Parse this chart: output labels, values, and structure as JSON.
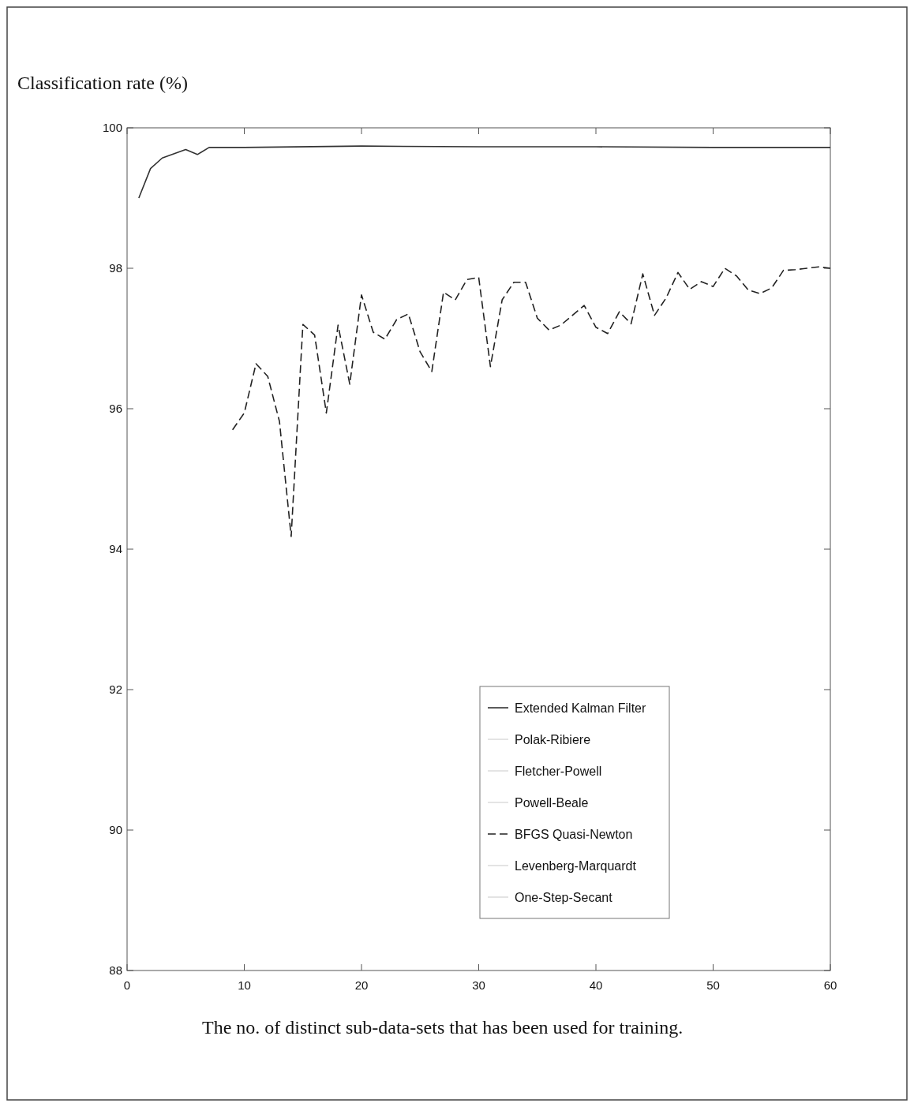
{
  "chart_data": {
    "type": "line",
    "title": "Classification rate (%)",
    "xlabel": "The no. of distinct sub-data-sets that has been used for training.",
    "xlim": [
      0,
      60
    ],
    "ylim": [
      88,
      100
    ],
    "xticks": [
      0,
      10,
      20,
      30,
      40,
      50,
      60
    ],
    "yticks": [
      88,
      90,
      92,
      94,
      96,
      98,
      100
    ],
    "grid": false,
    "legend": "right",
    "line_style": "solid",
    "marker": "none",
    "series": [
      {
        "name": "Extended Kalman Filter",
        "color": "#333333",
        "x": [
          1,
          2,
          3,
          5,
          6,
          7,
          10,
          20,
          30,
          40,
          50,
          60
        ],
        "values": [
          99.0,
          99.42,
          99.57,
          99.69,
          99.62,
          99.72,
          99.72,
          99.74,
          99.73,
          99.73,
          99.72,
          99.72
        ]
      },
      {
        "name": "Polak-Ribiere",
        "color": "#dddddd"
      },
      {
        "name": "Fletcher-Powell",
        "color": "#dddddd"
      },
      {
        "name": "Powell-Beale",
        "color": "#dddddd"
      },
      {
        "name": "BFGS Quasi-Newton",
        "color": "#222222",
        "line_style": "dashed",
        "x": [
          9,
          10,
          11,
          12,
          13,
          14,
          15,
          16,
          17,
          18,
          19,
          20,
          21,
          22,
          23,
          24,
          25,
          26,
          27,
          28,
          29,
          30,
          31,
          32,
          33,
          34,
          35,
          36,
          37,
          39,
          40,
          41,
          42,
          43,
          44,
          45,
          46,
          47,
          48,
          49,
          50,
          51,
          52,
          53,
          54,
          55,
          56,
          57,
          58,
          59,
          60
        ],
        "values": [
          95.7,
          95.94,
          96.64,
          96.46,
          95.82,
          94.18,
          97.2,
          97.05,
          95.94,
          97.19,
          96.35,
          97.62,
          97.09,
          96.99,
          97.27,
          97.35,
          96.81,
          96.53,
          97.66,
          97.55,
          97.84,
          97.87,
          96.6,
          97.55,
          97.8,
          97.8,
          97.29,
          97.12,
          97.19,
          97.47,
          97.16,
          97.07,
          97.38,
          97.21,
          97.92,
          97.33,
          97.58,
          97.94,
          97.7,
          97.81,
          97.74,
          98.0,
          97.89,
          97.69,
          97.64,
          97.72,
          97.97,
          97.98,
          98.0,
          98.02,
          98.0
        ]
      },
      {
        "name": "Levenberg-Marquardt",
        "color": "#dddddd"
      },
      {
        "name": "One-Step-Secant",
        "color": "#dddddd"
      }
    ]
  }
}
